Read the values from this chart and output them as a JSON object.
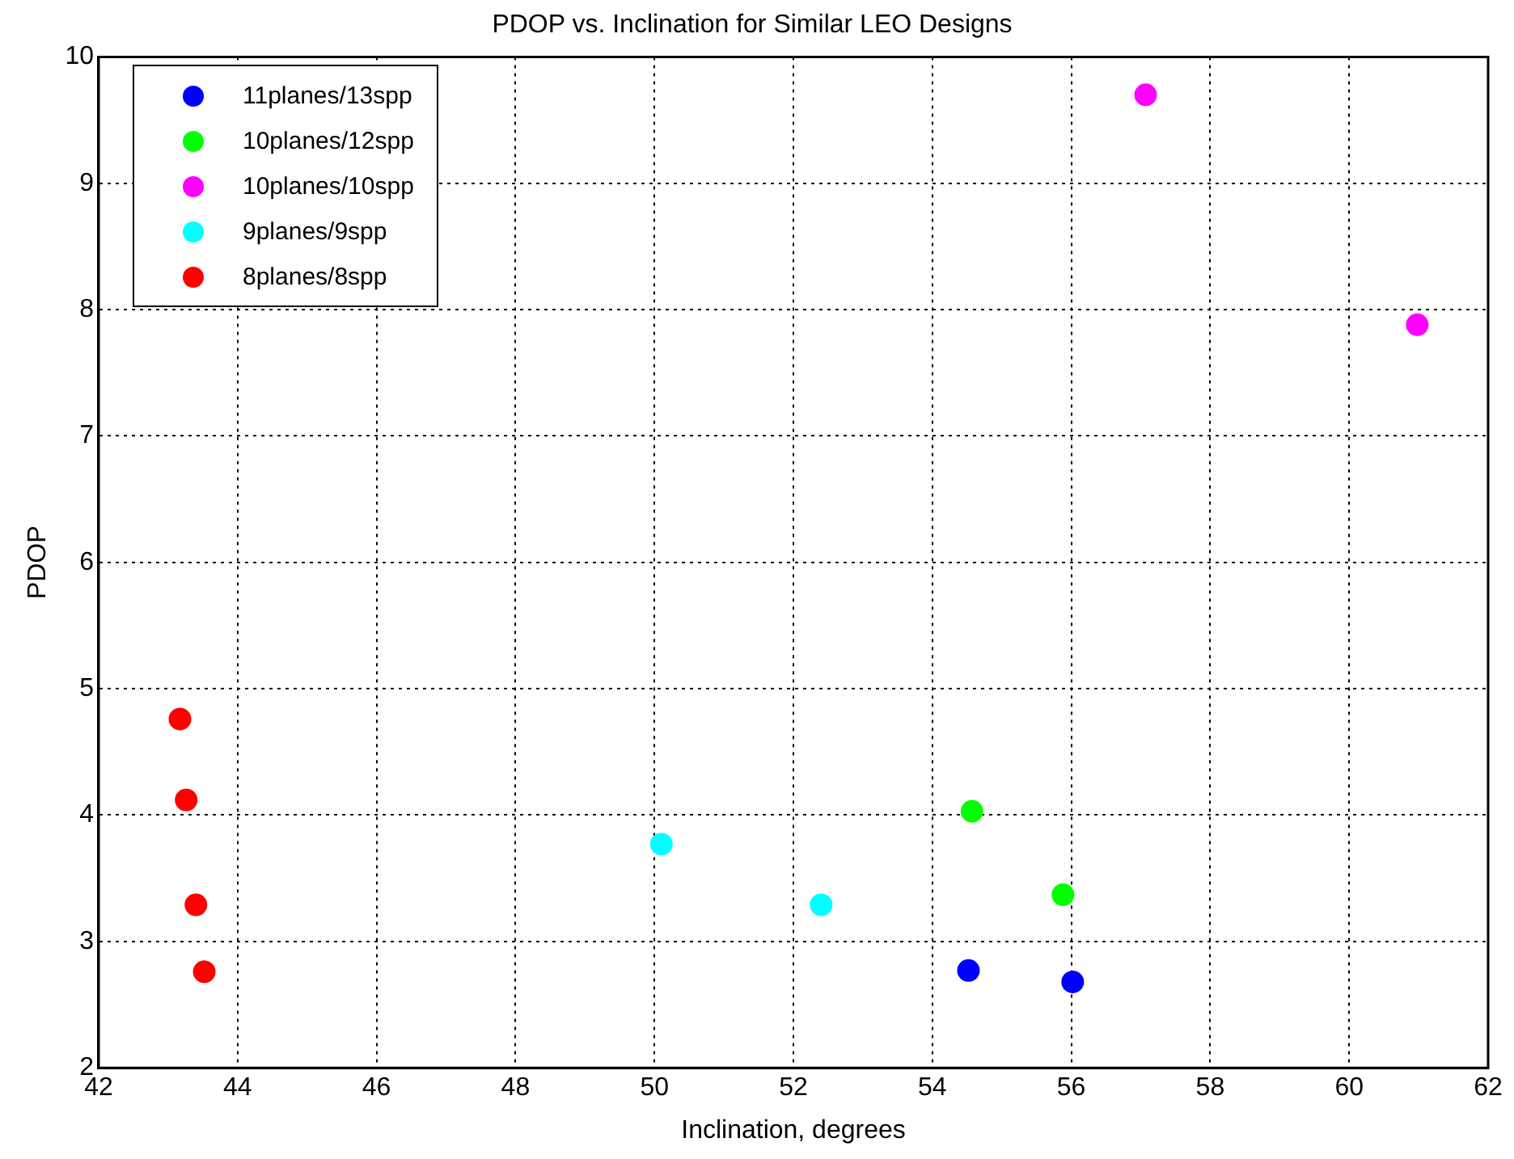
{
  "chart_data": {
    "type": "scatter",
    "title": "PDOP vs. Inclination for Similar LEO Designs",
    "xlabel": "Inclination, degrees",
    "ylabel": "PDOP",
    "xlim": [
      42,
      62
    ],
    "xticks": [
      42,
      44,
      46,
      48,
      50,
      52,
      54,
      56,
      58,
      60,
      62
    ],
    "ylim": [
      2,
      10
    ],
    "yticks": [
      2,
      3,
      4,
      5,
      6,
      7,
      8,
      9,
      10
    ],
    "grid": true,
    "legend": "top left",
    "marker": "circle",
    "series": [
      {
        "name": "11planes/13spp",
        "color": "#0000ff",
        "x": [
          54.52,
          56.02
        ],
        "values": [
          2.77,
          2.68
        ]
      },
      {
        "name": "10planes/12spp",
        "color": "#00ff00",
        "x": [
          54.57,
          55.88
        ],
        "values": [
          4.03,
          3.37
        ]
      },
      {
        "name": "10planes/10spp",
        "color": "#ff00ff",
        "x": [
          57.07,
          60.98
        ],
        "values": [
          9.7,
          7.88
        ]
      },
      {
        "name": "9planes/9spp",
        "color": "#00ffff",
        "x": [
          50.1,
          52.4
        ],
        "values": [
          3.77,
          3.29
        ]
      },
      {
        "name": "8planes/8spp",
        "color": "#ff0000",
        "x": [
          43.17,
          43.26,
          43.4,
          43.52
        ],
        "values": [
          4.76,
          4.12,
          3.29,
          2.76
        ]
      }
    ]
  }
}
